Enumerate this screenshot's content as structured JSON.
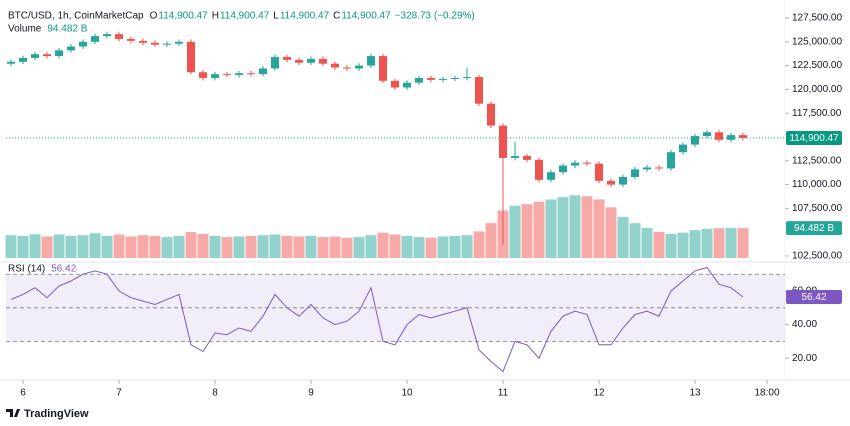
{
  "chart_data": {
    "type": "candlestick",
    "title": "BTC/USD, 1h, CoinMarketCap",
    "ohlc_header": [
      {
        "key": "O",
        "value": "114,900.47"
      },
      {
        "key": "H",
        "value": "114,900.47"
      },
      {
        "key": "L",
        "value": "114,900.47"
      },
      {
        "key": "C",
        "value": "114,900.47"
      }
    ],
    "change": "−328.73 (−0.29%)",
    "x": [
      -3,
      0,
      3,
      6,
      9,
      12,
      15,
      18,
      21,
      24,
      27,
      30,
      33,
      36,
      39,
      42,
      45,
      48,
      51,
      54,
      57,
      60,
      63,
      66,
      69,
      72,
      75,
      78,
      81,
      84,
      87,
      90,
      93,
      96,
      99,
      102,
      105,
      108,
      111,
      114,
      117,
      120,
      123,
      126,
      129,
      132,
      135,
      138,
      141,
      144,
      147,
      150,
      153,
      156,
      159,
      162,
      165,
      168,
      171,
      174,
      177,
      180
    ],
    "open": [
      122700,
      122900,
      123300,
      123700,
      123500,
      124100,
      124500,
      125000,
      125600,
      125800,
      125300,
      125100,
      124900,
      124700,
      124800,
      125000,
      121800,
      121200,
      121600,
      121500,
      121700,
      121600,
      122200,
      123400,
      123100,
      122800,
      123200,
      122700,
      122300,
      122200,
      122500,
      123500,
      120900,
      120200,
      120700,
      121200,
      121000,
      121100,
      121200,
      121300,
      118500,
      116200,
      112800,
      113000,
      112600,
      110500,
      111300,
      112000,
      112300,
      112200,
      110400,
      110000,
      110800,
      111600,
      111800,
      111700,
      113400,
      114200,
      115100,
      115500,
      114700,
      115200
    ],
    "high": [
      123150,
      123550,
      123950,
      123950,
      124350,
      124750,
      125250,
      125850,
      126050,
      126050,
      125550,
      125350,
      125150,
      125050,
      125250,
      125250,
      122050,
      121850,
      121850,
      121950,
      121950,
      122450,
      123650,
      123650,
      123350,
      123450,
      123450,
      122950,
      122550,
      122750,
      123750,
      123750,
      121150,
      120950,
      121450,
      121450,
      121350,
      121450,
      122300,
      121550,
      118750,
      116450,
      114500,
      113250,
      112850,
      111550,
      112250,
      112550,
      112550,
      112450,
      110650,
      111050,
      111850,
      112050,
      112050,
      113650,
      114450,
      115350,
      115750,
      115750,
      115450,
      115450
    ],
    "low": [
      122450,
      122650,
      123050,
      123250,
      123250,
      123850,
      124250,
      124750,
      125350,
      125050,
      124850,
      124650,
      124450,
      124450,
      124550,
      121550,
      120950,
      120950,
      121250,
      121250,
      121350,
      121350,
      121950,
      122850,
      122550,
      122550,
      122450,
      122050,
      121950,
      121950,
      122250,
      120650,
      119950,
      119950,
      120450,
      120750,
      120750,
      120850,
      120950,
      118250,
      115950,
      103700,
      112550,
      112350,
      110250,
      110250,
      111050,
      111750,
      111950,
      110150,
      109750,
      109750,
      110550,
      111350,
      111450,
      111450,
      113150,
      113950,
      114850,
      114450,
      114450,
      114650
    ],
    "close": [
      122900,
      123300,
      123700,
      123500,
      124100,
      124500,
      125000,
      125600,
      125800,
      125300,
      125100,
      124900,
      124700,
      124800,
      125000,
      121800,
      121200,
      121600,
      121500,
      121700,
      121600,
      122200,
      123400,
      123100,
      122800,
      123200,
      122700,
      122300,
      122200,
      122500,
      123500,
      120900,
      120200,
      120700,
      121200,
      121000,
      121100,
      121200,
      121300,
      118500,
      116200,
      112800,
      113000,
      112600,
      110500,
      111300,
      112000,
      112300,
      112200,
      110400,
      110000,
      110800,
      111600,
      111800,
      111700,
      113400,
      114200,
      115100,
      115500,
      114700,
      115200,
      114900.47
    ],
    "last_price_label": "114,900.47",
    "up_color": "#26a69a",
    "down_color": "#ef5350",
    "xlim": [
      -4.25,
      190.5
    ],
    "xticks": [
      {
        "value": 0,
        "label": "6"
      },
      {
        "value": 24,
        "label": "7"
      },
      {
        "value": 48,
        "label": "8"
      },
      {
        "value": 72,
        "label": "9"
      },
      {
        "value": 96,
        "label": "10"
      },
      {
        "value": 120,
        "label": "11"
      },
      {
        "value": 144,
        "label": "12"
      },
      {
        "value": 168,
        "label": "13"
      },
      {
        "value": 186,
        "label": "18:00"
      }
    ],
    "ylim": [
      101870,
      129390
    ],
    "yticks": [
      {
        "value": 102500,
        "label": "102,500.00"
      },
      {
        "value": 107500,
        "label": "107,500.00"
      },
      {
        "value": 110000,
        "label": "110,000.00"
      },
      {
        "value": 112500,
        "label": "112,500.00"
      },
      {
        "value": 117500,
        "label": "117,500.00"
      },
      {
        "value": 120000,
        "label": "120,000.00"
      },
      {
        "value": 122500,
        "label": "122,500.00"
      },
      {
        "value": 125000,
        "label": "125,000.00"
      },
      {
        "value": 127500,
        "label": "127,500.00"
      }
    ],
    "volume": {
      "name": "Volume",
      "values": [
        72,
        70,
        75,
        68,
        74,
        70,
        72,
        78,
        70,
        74,
        68,
        72,
        70,
        66,
        70,
        82,
        76,
        70,
        66,
        68,
        70,
        72,
        74,
        70,
        68,
        70,
        66,
        68,
        64,
        66,
        72,
        80,
        74,
        70,
        66,
        64,
        68,
        70,
        72,
        84,
        110,
        150,
        165,
        170,
        178,
        185,
        192,
        198,
        195,
        185,
        160,
        130,
        110,
        95,
        82,
        76,
        80,
        88,
        92,
        94,
        95,
        94.482
      ],
      "value_label": "94.482 B",
      "lim": [
        0,
        300
      ],
      "color": "#26a69a"
    },
    "rsi": {
      "name": "RSI (14)",
      "values": [
        55,
        58,
        62,
        56,
        63,
        66,
        70,
        72,
        70,
        60,
        56,
        54,
        52,
        55,
        58,
        28,
        24,
        35,
        34,
        38,
        36,
        45,
        58,
        50,
        45,
        52,
        44,
        40,
        42,
        48,
        62,
        30,
        28,
        40,
        46,
        44,
        46,
        48,
        50,
        25,
        18,
        12,
        30,
        28,
        20,
        36,
        45,
        48,
        46,
        28,
        28,
        38,
        46,
        48,
        45,
        60,
        66,
        72,
        74,
        64,
        62,
        56.42
      ],
      "value_label": "56.42",
      "lim": [
        8.2,
        75.5
      ],
      "ticks": [
        {
          "value": 20,
          "label": "20.00"
        },
        {
          "value": 40,
          "label": "40.00"
        },
        {
          "value": 60,
          "label": "60.00"
        }
      ],
      "bands": [
        70,
        50,
        30
      ],
      "color": "#7e57c2"
    },
    "branding": "TradingView"
  }
}
